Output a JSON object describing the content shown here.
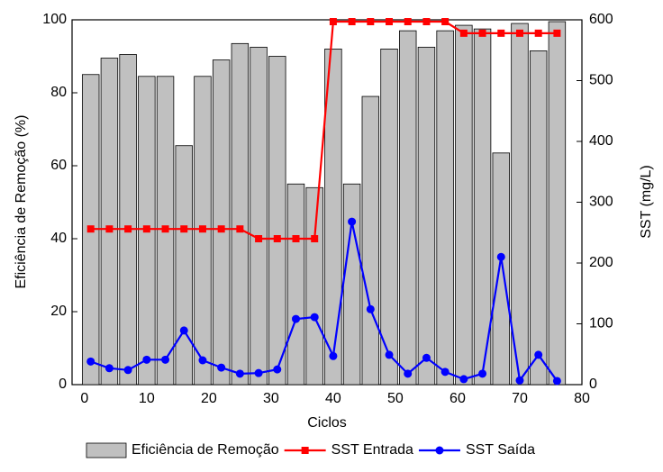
{
  "chart_data": {
    "type": "bar-line",
    "x_label": "Ciclos",
    "y_label": "Eficiência de Remoção (%)",
    "y2_label": "SST (mg/L)",
    "xlim": [
      -2,
      80
    ],
    "xticks": [
      0,
      10,
      20,
      30,
      40,
      50,
      60,
      70,
      80
    ],
    "ylim": [
      0,
      100
    ],
    "yticks": [
      0,
      20,
      40,
      60,
      80,
      100
    ],
    "y2lim": [
      0,
      600
    ],
    "y2ticks": [
      0,
      100,
      200,
      300,
      400,
      500,
      600
    ],
    "x": [
      1,
      4,
      7,
      10,
      13,
      16,
      19,
      22,
      25,
      28,
      31,
      34,
      37,
      40,
      43,
      46,
      49,
      52,
      55,
      58,
      61,
      64,
      67,
      70,
      73,
      76
    ],
    "series": [
      {
        "name": "Eficiência de Remoção",
        "type": "bar",
        "color": "#c0c0c0",
        "axis": "y",
        "values": [
          85,
          89.5,
          90.5,
          84.5,
          84.5,
          65.5,
          84.5,
          89,
          93.5,
          92.5,
          90,
          55,
          54,
          92,
          55,
          79,
          92,
          97,
          92.5,
          97,
          98.5,
          97.5,
          63.5,
          99,
          91.5,
          99.5
        ]
      },
      {
        "name": "SST Entrada",
        "type": "line",
        "marker": "square",
        "color": "#ff0000",
        "axis": "y2",
        "values": [
          256,
          256,
          256,
          256,
          256,
          256,
          256,
          256,
          256,
          240,
          240,
          240,
          240,
          597,
          597,
          597,
          597,
          597,
          597,
          597,
          578,
          578,
          578,
          578,
          578,
          578
        ]
      },
      {
        "name": "SST Saída",
        "type": "line",
        "marker": "circle",
        "color": "#0000ff",
        "axis": "y2",
        "values": [
          38,
          27,
          24,
          41,
          41,
          89,
          40,
          28,
          18,
          19,
          25,
          108,
          111,
          47,
          268,
          124,
          49,
          18,
          44,
          21,
          9,
          18,
          210,
          7,
          49,
          6
        ]
      }
    ]
  }
}
